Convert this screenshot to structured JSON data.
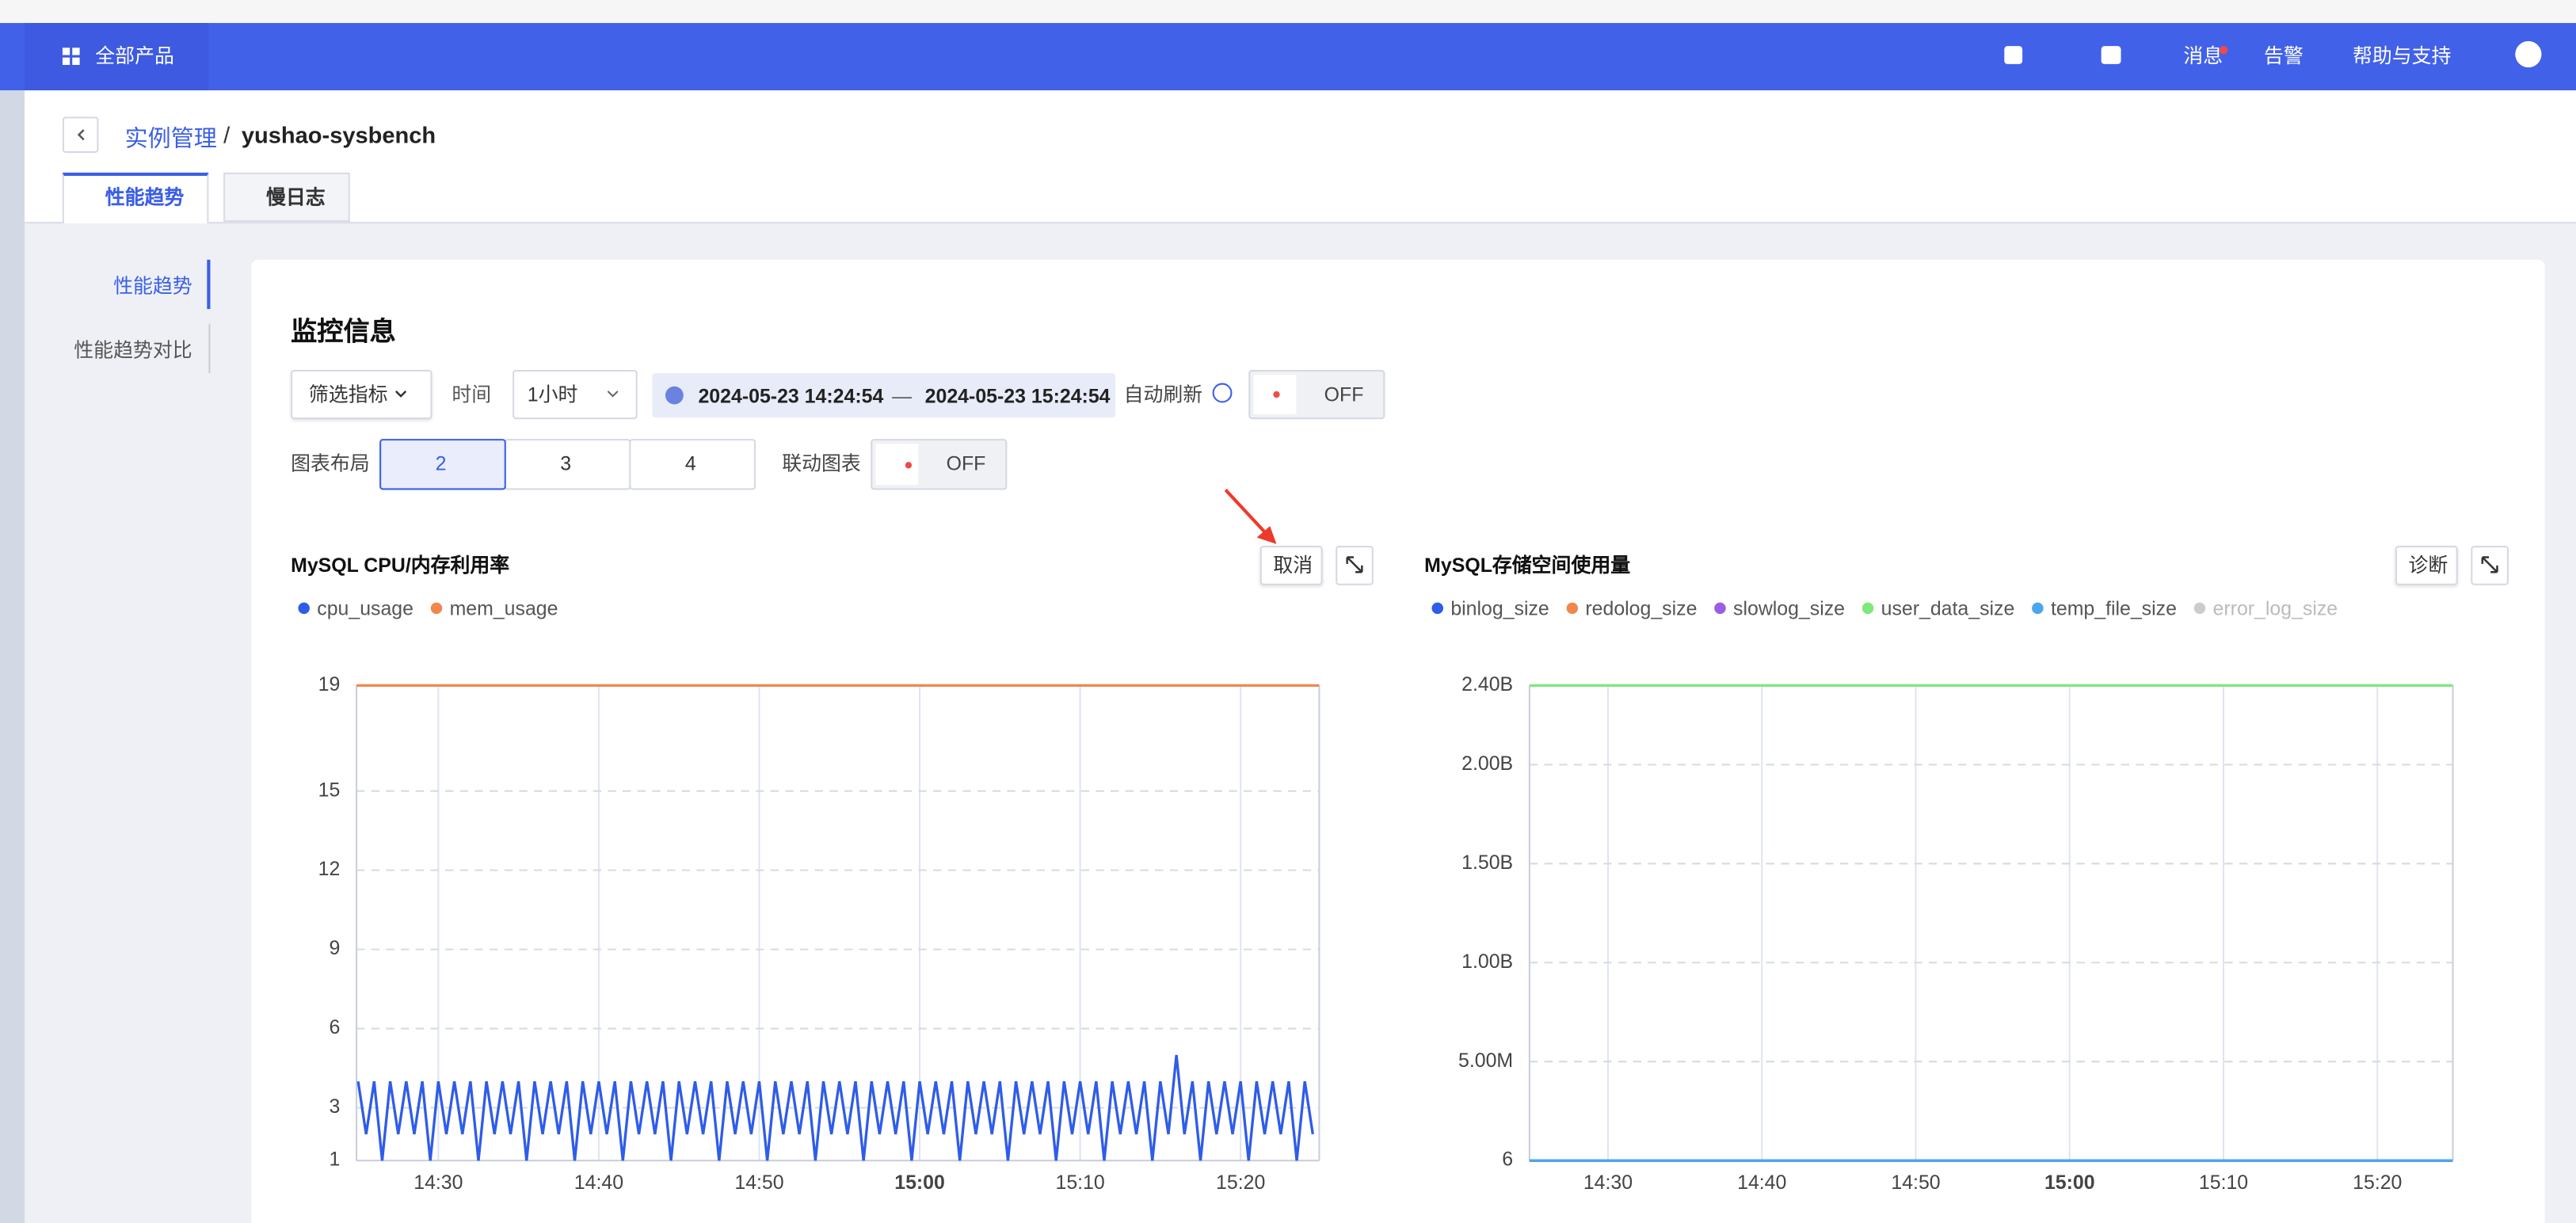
{
  "header": {
    "products": "全部产品",
    "messages": "消息",
    "alerts": "告警",
    "help": "帮助与支持"
  },
  "breadcrumb": {
    "parent": "实例管理",
    "separator": "/",
    "current": "yushao-sysbench"
  },
  "tabs": [
    "性能趋势",
    "慢日志"
  ],
  "side_nav": [
    "性能趋势",
    "性能趋势对比"
  ],
  "panel": {
    "title": "监控信息",
    "filter": "筛选指标",
    "time_label": "时间",
    "time_range": "1小时",
    "start": "2024-05-23 14:24:54",
    "dash": "—",
    "end": "2024-05-23 15:24:54",
    "auto_refresh": "自动刷新",
    "auto_refresh_state": "OFF",
    "layout_label": "图表布局",
    "layout_options": [
      "2",
      "3",
      "4"
    ],
    "linked_label": "联动图表",
    "linked_state": "OFF"
  },
  "chart_data": [
    {
      "type": "line",
      "title": "MySQL CPU/内存利用率",
      "action": "取消",
      "grid": true,
      "xlim": [
        "14:24:54",
        "15:24:54"
      ],
      "xticks": [
        "14:30",
        "14:40",
        "14:50",
        "15:00",
        "15:10",
        "15:20"
      ],
      "ylim": [
        1,
        19
      ],
      "yticks": [
        1,
        3,
        6,
        9,
        12,
        15,
        19
      ],
      "series": [
        {
          "name": "cpu_usage",
          "color": "#2f5ce8",
          "x": [
            "14:25:00",
            "14:25:30",
            "14:26:00",
            "14:26:30",
            "14:27:00",
            "14:27:30",
            "14:28:00",
            "14:28:30",
            "14:29:00",
            "14:29:30",
            "14:30:00",
            "14:30:30",
            "14:31:00",
            "14:31:30",
            "14:32:00",
            "14:32:30",
            "14:33:00",
            "14:33:30",
            "14:34:00",
            "14:34:30",
            "14:35:00",
            "14:35:30",
            "14:36:00",
            "14:36:30",
            "14:37:00",
            "14:37:30",
            "14:38:00",
            "14:38:30",
            "14:39:00",
            "14:39:30",
            "14:40:00",
            "14:40:30",
            "14:41:00",
            "14:41:30",
            "14:42:00",
            "14:42:30",
            "14:43:00",
            "14:43:30",
            "14:44:00",
            "14:44:30",
            "14:45:00",
            "14:45:30",
            "14:46:00",
            "14:46:30",
            "14:47:00",
            "14:47:30",
            "14:48:00",
            "14:48:30",
            "14:49:00",
            "14:49:30",
            "14:50:00",
            "14:50:30",
            "14:51:00",
            "14:51:30",
            "14:52:00",
            "14:52:30",
            "14:53:00",
            "14:53:30",
            "14:54:00",
            "14:54:30",
            "14:55:00",
            "14:55:30",
            "14:56:00",
            "14:56:30",
            "14:57:00",
            "14:57:30",
            "14:58:00",
            "14:58:30",
            "14:59:00",
            "14:59:30",
            "15:00:00",
            "15:00:30",
            "15:01:00",
            "15:01:30",
            "15:02:00",
            "15:02:30",
            "15:03:00",
            "15:03:30",
            "15:04:00",
            "15:04:30",
            "15:05:00",
            "15:05:30",
            "15:06:00",
            "15:06:30",
            "15:07:00",
            "15:07:30",
            "15:08:00",
            "15:08:30",
            "15:09:00",
            "15:09:30",
            "15:10:00",
            "15:10:30",
            "15:11:00",
            "15:11:30",
            "15:12:00",
            "15:12:30",
            "15:13:00",
            "15:13:30",
            "15:14:00",
            "15:14:30",
            "15:15:00",
            "15:15:30",
            "15:16:00",
            "15:16:30",
            "15:17:00",
            "15:17:30",
            "15:18:00",
            "15:18:30",
            "15:19:00",
            "15:19:30",
            "15:20:00",
            "15:20:30",
            "15:21:00",
            "15:21:30",
            "15:22:00",
            "15:22:30",
            "15:23:00",
            "15:23:30",
            "15:24:00",
            "15:24:30"
          ],
          "values": [
            4,
            2,
            4,
            1,
            4,
            2,
            4,
            2,
            4,
            1,
            4,
            2,
            4,
            2,
            4,
            1,
            4,
            2,
            4,
            2,
            4,
            1,
            4,
            2,
            4,
            2,
            4,
            1,
            4,
            2,
            4,
            2,
            4,
            1,
            4,
            2,
            4,
            2,
            4,
            1,
            4,
            2,
            4,
            2,
            4,
            1,
            4,
            2,
            4,
            2,
            4,
            1,
            4,
            2,
            4,
            2,
            4,
            1,
            4,
            2,
            4,
            2,
            4,
            1,
            4,
            2,
            4,
            2,
            4,
            1,
            4,
            2,
            4,
            2,
            4,
            1,
            4,
            2,
            4,
            2,
            4,
            1,
            4,
            2,
            4,
            2,
            4,
            1,
            4,
            2,
            4,
            2,
            4,
            1,
            4,
            2,
            4,
            2,
            4,
            1,
            4,
            2,
            5,
            2,
            4,
            1,
            4,
            2,
            4,
            2,
            4,
            1,
            4,
            2,
            4,
            2,
            4,
            1,
            4,
            2
          ]
        },
        {
          "name": "mem_usage",
          "color": "#f0884e",
          "x": [
            "14:24:54",
            "15:24:54"
          ],
          "values": [
            19,
            19
          ]
        }
      ]
    },
    {
      "type": "line",
      "title": "MySQL存储空间使用量",
      "action": "诊断",
      "grid": true,
      "xlim": [
        "14:24:54",
        "15:24:54"
      ],
      "xticks": [
        "14:30",
        "14:40",
        "14:50",
        "15:00",
        "15:10",
        "15:20"
      ],
      "ylim": [
        6,
        2400000000
      ],
      "yticks": [
        6,
        {
          "value": 5000000,
          "label": "5.00M"
        },
        {
          "value": 1000000000,
          "label": "1.00B"
        },
        {
          "value": 1500000000,
          "label": "1.50B"
        },
        {
          "value": 2000000000,
          "label": "2.00B"
        },
        {
          "value": 2400000000,
          "label": "2.40B"
        }
      ],
      "series": [
        {
          "name": "binlog_size",
          "color": "#2f5ce8",
          "x": [
            "14:24:54",
            "15:24:54"
          ],
          "values": [
            6,
            6
          ]
        },
        {
          "name": "redolog_size",
          "color": "#f0884e",
          "x": [
            "14:24:54",
            "15:24:54"
          ],
          "values": [
            6,
            6
          ]
        },
        {
          "name": "slowlog_size",
          "color": "#9a5de4",
          "x": [
            "14:24:54",
            "15:24:54"
          ],
          "values": [
            6,
            6
          ]
        },
        {
          "name": "user_data_size",
          "color": "#7ee87a",
          "x": [
            "14:24:54",
            "15:24:54"
          ],
          "values": [
            2400000000,
            2400000000
          ]
        },
        {
          "name": "temp_file_size",
          "color": "#4aa6f0",
          "x": [
            "14:24:54",
            "15:24:54"
          ],
          "values": [
            6,
            6
          ]
        },
        {
          "name": "error_log_size",
          "color": "#cccccc"
        }
      ]
    }
  ]
}
